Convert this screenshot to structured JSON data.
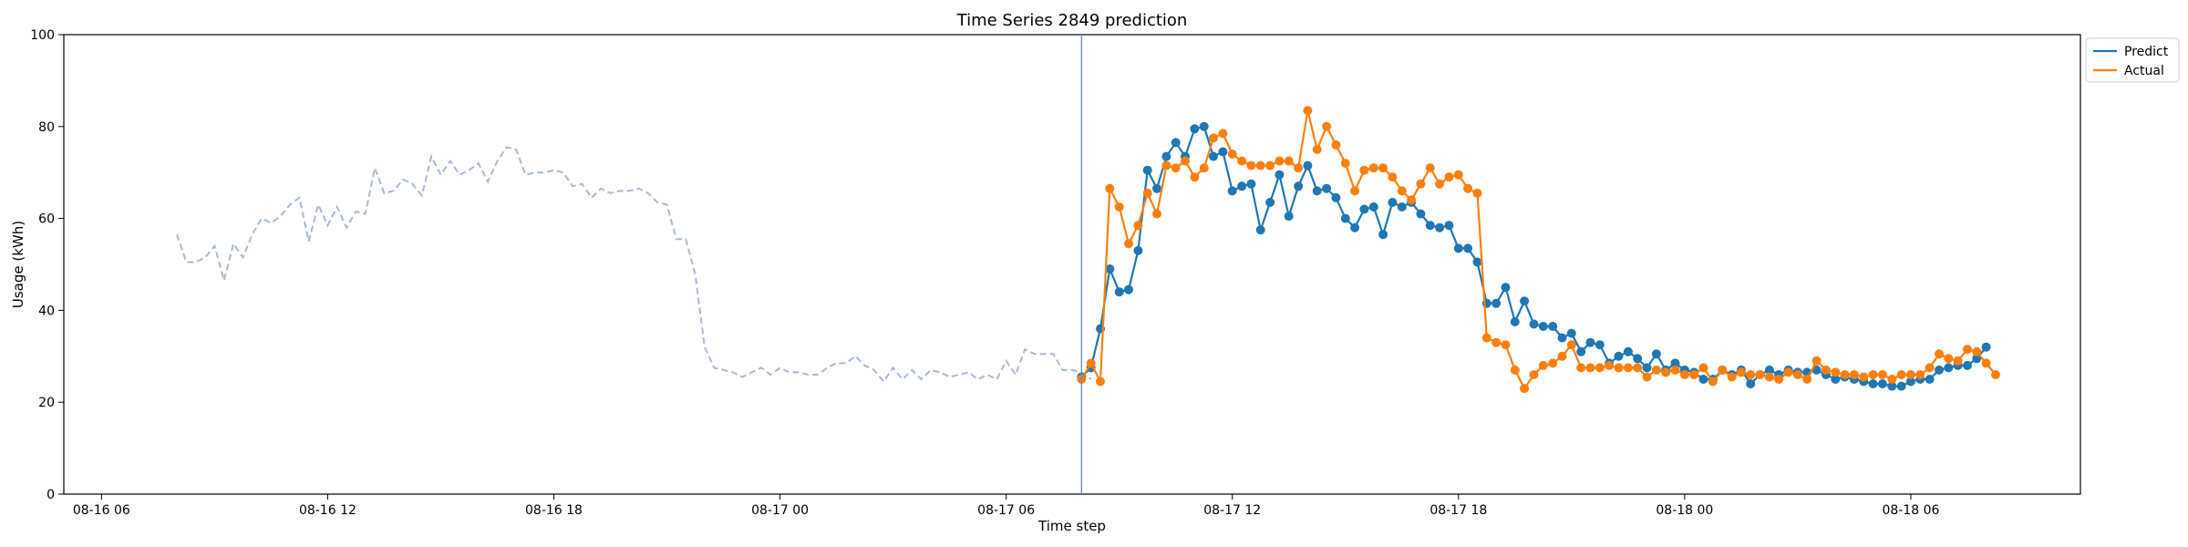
{
  "chart_data": {
    "type": "line",
    "title": "Time Series 2849 prediction",
    "xlabel": "Time step",
    "ylabel": "Usage (kWh)",
    "ylim": [
      0,
      100
    ],
    "xlim": [
      "2023-08-16T05:00",
      "2023-08-18T10:30"
    ],
    "yticks": [
      0,
      20,
      40,
      60,
      80,
      100
    ],
    "xticks": [
      {
        "t": "2023-08-16T06:00",
        "label": "08-16 06"
      },
      {
        "t": "2023-08-16T12:00",
        "label": "08-16 12"
      },
      {
        "t": "2023-08-16T18:00",
        "label": "08-16 18"
      },
      {
        "t": "2023-08-17T00:00",
        "label": "08-17 00"
      },
      {
        "t": "2023-08-17T06:00",
        "label": "08-17 06"
      },
      {
        "t": "2023-08-17T12:00",
        "label": "08-17 12"
      },
      {
        "t": "2023-08-17T18:00",
        "label": "08-17 18"
      },
      {
        "t": "2023-08-18T00:00",
        "label": "08-18 00"
      },
      {
        "t": "2023-08-18T06:00",
        "label": "08-18 06"
      }
    ],
    "legend_position": "top-right",
    "grid": false,
    "forecast_start": "2023-08-17T08:00",
    "history": {
      "color": "#a6b8d6",
      "style": "dashed",
      "start": "2023-08-16T08:00",
      "step_minutes": 15,
      "values": [
        56.5,
        50.5,
        50.5,
        51.5,
        54,
        46.5,
        54.5,
        51.5,
        56.5,
        60,
        59,
        60.5,
        63,
        64.5,
        55,
        63,
        58.5,
        62.5,
        58,
        61.5,
        61,
        71,
        65.5,
        66,
        68.5,
        67.5,
        65,
        73.5,
        69.5,
        72.5,
        69.5,
        70.5,
        72,
        68,
        72.5,
        75.5,
        75,
        69.5,
        70,
        70,
        70.5,
        70,
        67,
        67.5,
        64.5,
        66.5,
        65.5,
        66,
        66,
        66.5,
        65.5,
        63.5,
        63,
        55.5,
        55.5,
        48,
        32,
        27.5,
        27,
        26.5,
        25.5,
        26.5,
        27.5,
        26,
        27.5,
        26.5,
        26.5,
        26,
        26,
        27.5,
        28.5,
        28.5,
        30,
        28,
        27,
        24.5,
        27.5,
        25,
        27,
        25,
        27,
        26.5,
        25.5,
        26,
        26.5,
        25,
        26,
        25,
        29,
        26,
        31.5,
        30.5,
        30.5,
        30.5,
        27,
        27,
        26.5,
        25
      ]
    },
    "series": [
      {
        "name": "Predict",
        "color": "#1f77b4",
        "start": "2023-08-17T08:00",
        "step_minutes": 15,
        "values": [
          25.5,
          27.5,
          36,
          49,
          44,
          44.5,
          53,
          70.5,
          66.5,
          73.5,
          76.5,
          73.5,
          79.5,
          80,
          73.5,
          74.5,
          66,
          67,
          67.5,
          57.5,
          63.5,
          69.5,
          60.5,
          67,
          71.5,
          66,
          66.5,
          64.5,
          60,
          58,
          62,
          62.5,
          56.5,
          63.5,
          62.5,
          63.5,
          61,
          58.5,
          58,
          58.5,
          53.5,
          53.5,
          50.5,
          41.5,
          41.5,
          45,
          37.5,
          42,
          37,
          36.5,
          36.5,
          34,
          35,
          31,
          33,
          32.5,
          28.5,
          30,
          31,
          29.5,
          27.5,
          30.5,
          27,
          28.5,
          27,
          26.5,
          25,
          25,
          27,
          26,
          27,
          24,
          26,
          27,
          26,
          27,
          26.5,
          26.5,
          27,
          26,
          25,
          25.5,
          25,
          24.5,
          24,
          24,
          23.5,
          23.5,
          24.5,
          25,
          25,
          27,
          27.5,
          28,
          28,
          29.5,
          32
        ]
      },
      {
        "name": "Actual",
        "color": "#ff7f0e",
        "start": "2023-08-17T08:00",
        "step_minutes": 15,
        "values": [
          25,
          28.5,
          24.5,
          66.5,
          62.5,
          54.5,
          58.5,
          65.5,
          61,
          71.5,
          71,
          72.5,
          69,
          71,
          77.5,
          78.5,
          74,
          72.5,
          71.5,
          71.5,
          71.5,
          72.5,
          72.5,
          71,
          83.5,
          75,
          80,
          76,
          72,
          66,
          70.5,
          71,
          71,
          69,
          66,
          64,
          67.5,
          71,
          67.5,
          69,
          69.5,
          66.5,
          65.5,
          34,
          33,
          32.5,
          27,
          23,
          26,
          28,
          28.5,
          30,
          32.5,
          27.5,
          27.5,
          27.5,
          28,
          27.5,
          27.5,
          27.5,
          25.5,
          27,
          26.5,
          27,
          26,
          26,
          27.5,
          24.5,
          27,
          25.5,
          26.5,
          26,
          26,
          25.5,
          25,
          26.5,
          26,
          25,
          29,
          27,
          26.5,
          26,
          26,
          25.5,
          26,
          26,
          25,
          26,
          26,
          26,
          27.5,
          30.5,
          29.5,
          29,
          31.5,
          31,
          28.5,
          26
        ]
      }
    ]
  }
}
